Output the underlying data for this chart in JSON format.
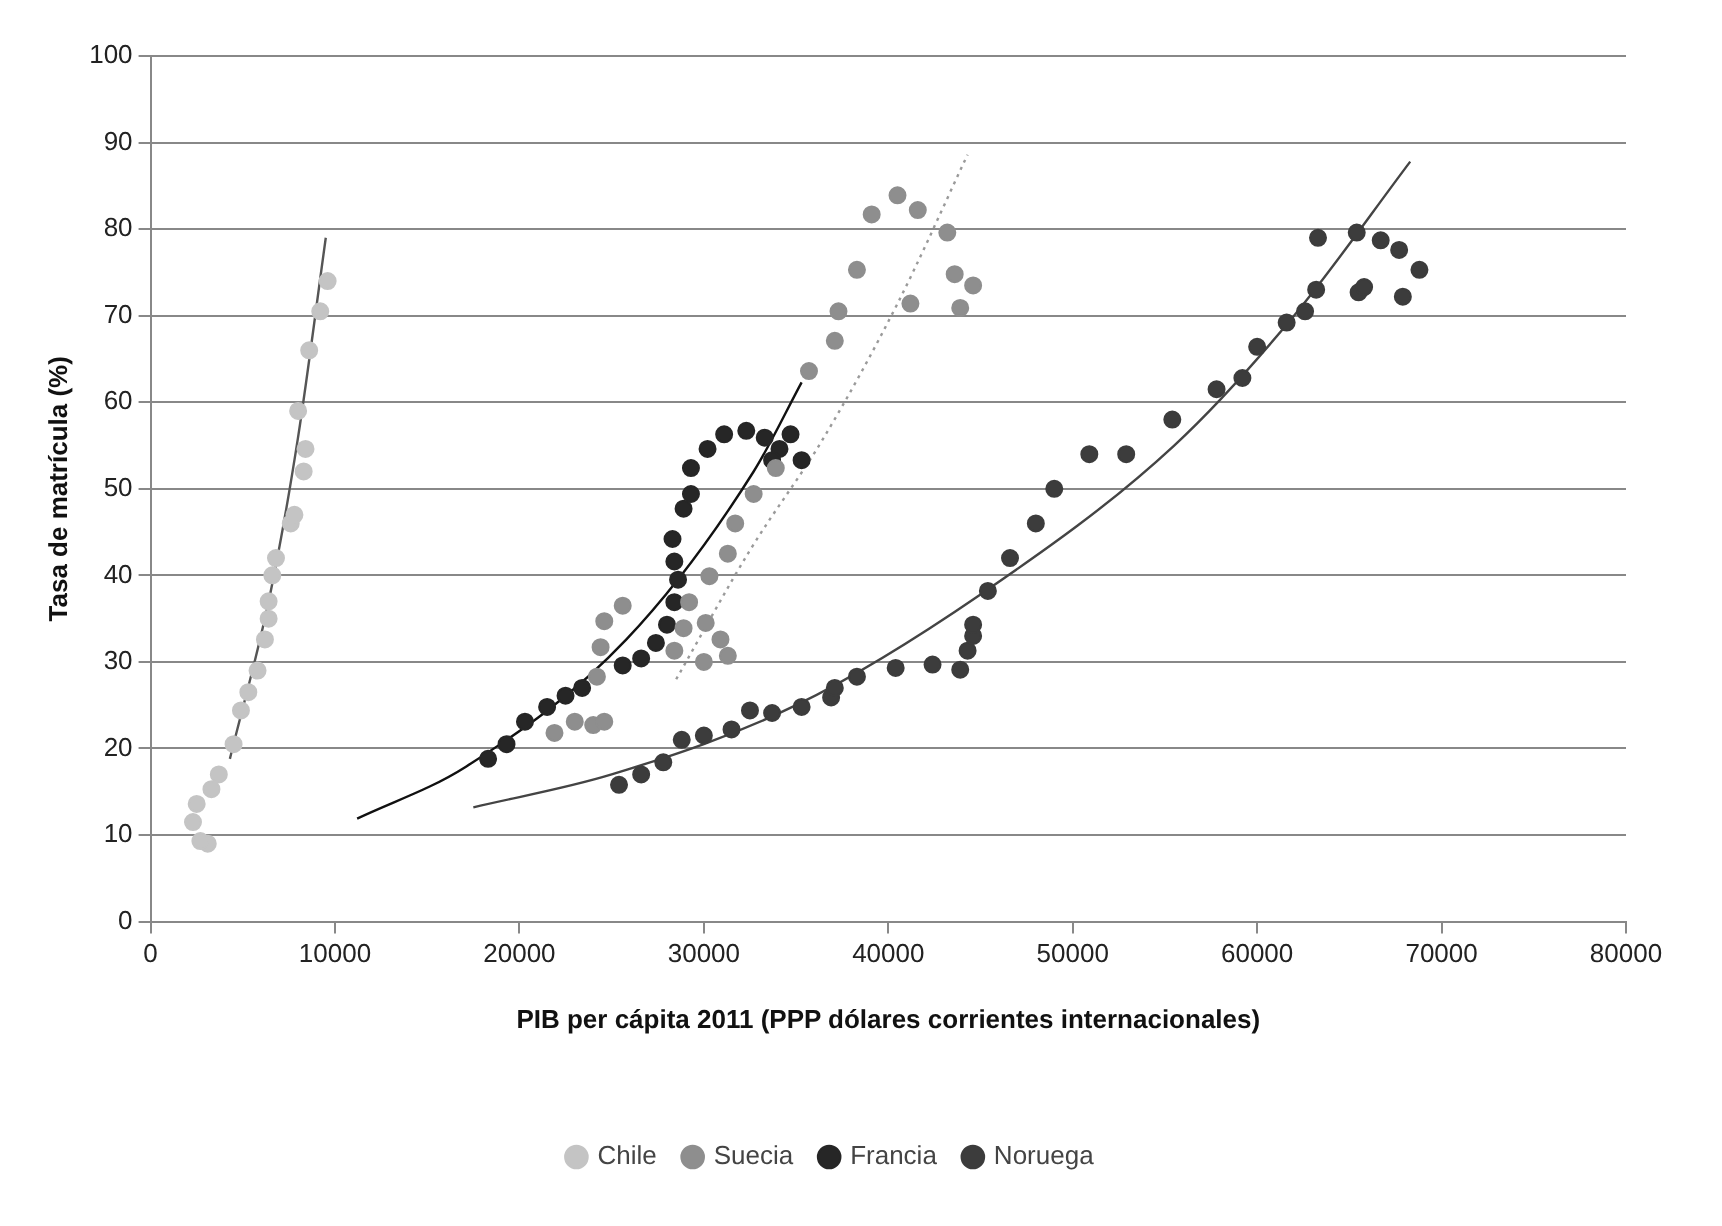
{
  "chart_data": {
    "type": "scatter",
    "xlabel": "PIB per cápita 2011 (PPP dólares corrientes internacionales)",
    "ylabel": "Tasa de matrícula (%)",
    "xlim": [
      0,
      80000
    ],
    "xticks": [
      0,
      10000,
      20000,
      30000,
      40000,
      50000,
      60000,
      70000,
      80000
    ],
    "ylim": [
      0,
      100
    ],
    "yticks": [
      0,
      10,
      20,
      30,
      40,
      50,
      60,
      70,
      80,
      90,
      100
    ],
    "grid": "y",
    "legend": "bottom",
    "marker": "circle",
    "series": [
      {
        "name": "Chile",
        "color": "#c4c4c4",
        "x": [
          3100,
          2700,
          2300,
          2500,
          3300,
          3700,
          4500,
          4900,
          5300,
          5800,
          6200,
          6400,
          6400,
          6600,
          6800,
          7600,
          7800,
          8300,
          8400,
          8000,
          8600,
          9200,
          9600
        ],
        "values": [
          9,
          9.3,
          11.5,
          13.6,
          15.3,
          17,
          20.5,
          24.4,
          26.5,
          29,
          32.6,
          35,
          37,
          40,
          42,
          46,
          47,
          52,
          54.6,
          59,
          66,
          70.5,
          74
        ]
      },
      {
        "name": "Suecia",
        "color": "#8e8e8e",
        "x": [
          21900,
          23000,
          24000,
          24600,
          24200,
          24400,
          24600,
          25600,
          28400,
          30000,
          31300,
          30900,
          30100,
          28900,
          29200,
          30300,
          31300,
          31700,
          32700,
          33900,
          35700,
          37100,
          37300,
          38300,
          39100,
          40500,
          41600,
          41200,
          43200,
          43600,
          44600,
          43900
        ],
        "values": [
          21.8,
          23.1,
          22.7,
          23.1,
          28.3,
          31.7,
          34.7,
          36.5,
          31.3,
          30,
          30.7,
          32.6,
          34.5,
          33.9,
          36.9,
          39.9,
          42.5,
          46,
          49.4,
          52.4,
          63.6,
          67.1,
          70.5,
          75.3,
          81.7,
          83.9,
          82.2,
          71.4,
          79.6,
          74.8,
          73.5,
          70.9
        ]
      },
      {
        "name": "Francia",
        "color": "#262626",
        "x": [
          18300,
          19300,
          20300,
          21500,
          22500,
          23400,
          24600,
          25600,
          26600,
          27400,
          28000,
          28400,
          28600,
          28400,
          28300,
          28900,
          29300,
          29300,
          30200,
          31100,
          32300,
          33300,
          34100,
          34700,
          35300,
          33700
        ],
        "values": [
          18.8,
          20.5,
          23.1,
          24.8,
          26.1,
          27,
          null,
          29.6,
          30.4,
          32.2,
          34.3,
          36.9,
          39.5,
          41.6,
          44.2,
          47.7,
          49.4,
          52.4,
          54.6,
          56.3,
          56.7,
          55.9,
          54.6,
          56.3,
          53.3,
          53.3
        ]
      },
      {
        "name": "Noruega",
        "color": "#3c3c3c",
        "x": [
          25400,
          26600,
          27800,
          28800,
          30000,
          31500,
          32500,
          33700,
          35300,
          36900,
          37100,
          38300,
          40400,
          42400,
          43900,
          44300,
          44600,
          44600,
          45400,
          46600,
          48000,
          49000,
          50900,
          52900,
          55400,
          57800,
          59200,
          60000,
          61600,
          62600,
          63200,
          63300,
          65400,
          66700,
          67700,
          68800,
          67900,
          65500,
          65800
        ],
        "values": [
          15.8,
          17,
          18.4,
          21,
          21.5,
          22.2,
          24.4,
          24.1,
          24.8,
          25.9,
          27,
          28.3,
          29.3,
          29.7,
          29.1,
          31.3,
          33,
          34.3,
          38.2,
          42,
          46,
          50,
          54,
          54,
          58,
          61.5,
          62.8,
          66.4,
          69.2,
          70.5,
          73,
          79,
          79.6,
          78.7,
          77.6,
          75.3,
          72.2,
          72.7,
          73.3
        ]
      },
      {
        "type": "line",
        "marker": "none",
        "color": "#555555",
        "line_style": "solid",
        "x": [
          4300,
          6500,
          8000,
          9500
        ],
        "values": [
          18.8,
          38,
          56,
          79
        ]
      },
      {
        "type": "line",
        "marker": "none",
        "color": "#9a9a9a",
        "line_style": "dotted",
        "x": [
          28500,
          32500,
          36500,
          40500,
          44300
        ],
        "values": [
          28,
          42.9,
          55.9,
          71.4,
          88.6
        ]
      },
      {
        "type": "line",
        "marker": "none",
        "color": "#111111",
        "line_style": "solid",
        "x": [
          11200,
          17100,
          25800,
          32700,
          35300
        ],
        "values": [
          11.9,
          17.9,
          32.6,
          52,
          62.3
        ]
      },
      {
        "type": "line",
        "marker": "none",
        "color": "#444444",
        "line_style": "solid",
        "x": [
          17500,
          25000,
          35000,
          45000,
          55500,
          62000,
          68300
        ],
        "values": [
          13.2,
          17,
          25,
          37.8,
          55,
          70,
          87.8
        ]
      }
    ]
  }
}
